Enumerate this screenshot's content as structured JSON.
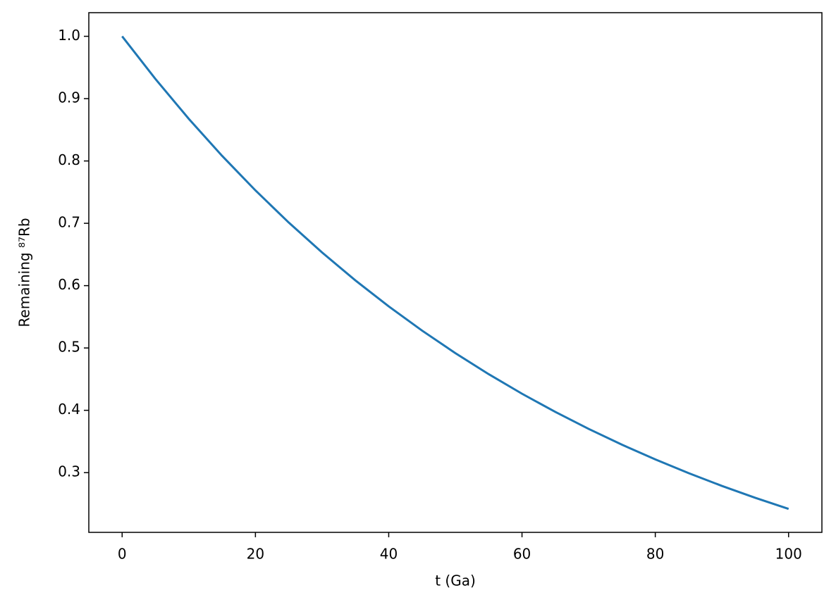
{
  "chart_data": {
    "type": "line",
    "x_label": "t (Ga)",
    "y_label": "Remaining ⁸⁷Rb",
    "x": [
      0,
      5,
      10,
      15,
      20,
      25,
      30,
      35,
      40,
      45,
      50,
      55,
      60,
      65,
      70,
      75,
      80,
      85,
      90,
      95,
      100
    ],
    "series": [
      {
        "color": "#1f77b4",
        "values": [
          1.0,
          0.9315,
          0.8676,
          0.8082,
          0.7528,
          0.7012,
          0.6532,
          0.6084,
          0.5667,
          0.5279,
          0.4917,
          0.458,
          0.4266,
          0.3974,
          0.3702,
          0.3448,
          0.3212,
          0.2992,
          0.2787,
          0.2596,
          0.2418
        ]
      }
    ],
    "xlim": [
      -5,
      105
    ],
    "ylim": [
      0.2042,
      1.0379
    ],
    "xticks": [
      0,
      20,
      40,
      60,
      80,
      100
    ],
    "yticks": [
      0.3,
      0.4,
      0.5,
      0.6,
      0.7,
      0.8,
      0.9,
      {
        "value": 1,
        "label": "1.0"
      }
    ],
    "grid": false
  }
}
